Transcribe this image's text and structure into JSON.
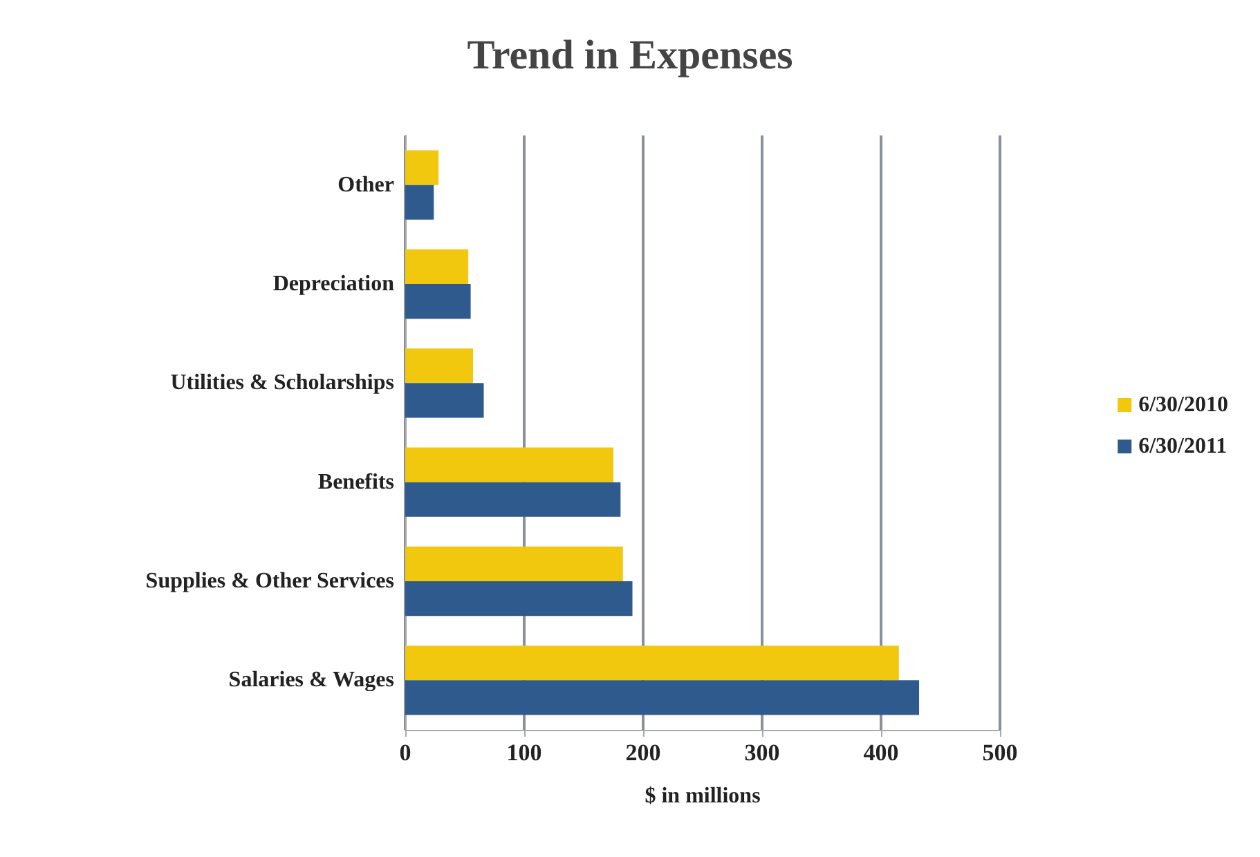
{
  "chart_data": {
    "type": "bar",
    "orientation": "horizontal",
    "title": "Trend in Expenses",
    "xlabel": "$ in millions",
    "categories": [
      "Other",
      "Depreciation",
      "Utilities & Scholarships",
      "Benefits",
      "Supplies & Other Services",
      "Salaries & Wages"
    ],
    "series": [
      {
        "name": "6/30/2010",
        "color": "#f2c80f",
        "values": [
          28,
          53,
          57,
          175,
          183,
          415
        ]
      },
      {
        "name": "6/30/2011",
        "color": "#2e5a8e",
        "values": [
          24,
          55,
          66,
          181,
          191,
          432
        ]
      }
    ],
    "xlim": [
      0,
      500
    ],
    "xticks": [
      0,
      100,
      200,
      300,
      400,
      500
    ],
    "grid": "x",
    "legend": "right"
  }
}
